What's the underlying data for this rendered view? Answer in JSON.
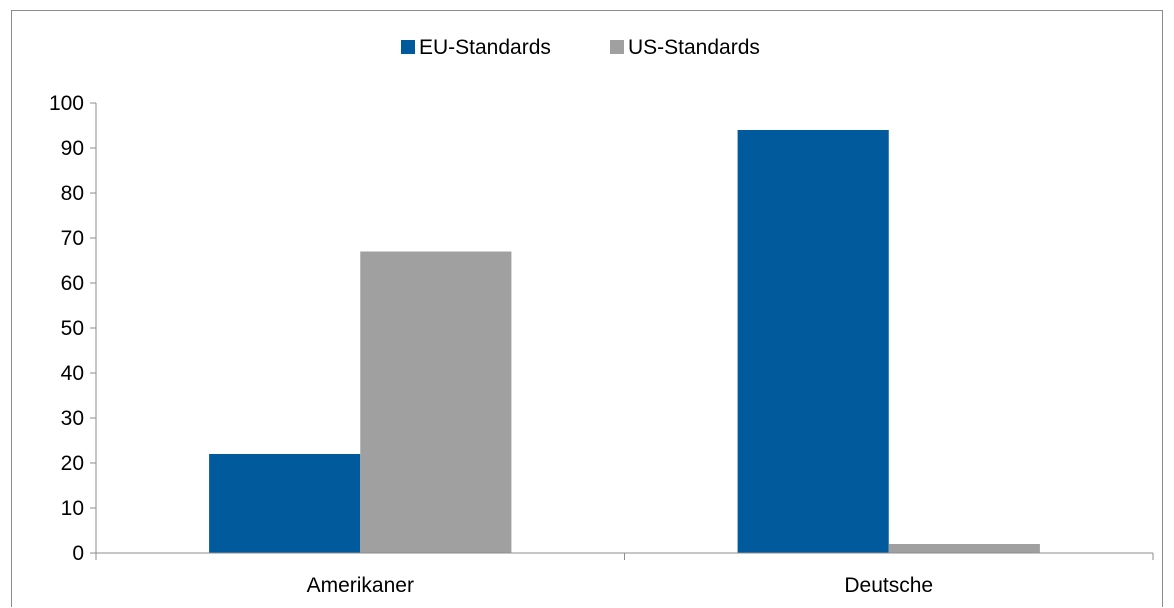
{
  "caption_fragment": "g",
  "chart_data": {
    "type": "bar",
    "title": "",
    "xlabel": "",
    "ylabel": "",
    "categories": [
      "Amerikaner",
      "Deutsche"
    ],
    "series": [
      {
        "name": "EU-Standards",
        "values": [
          22,
          94
        ],
        "color": "#005a9c"
      },
      {
        "name": "US-Standards",
        "values": [
          67,
          2
        ],
        "color": "#a0a0a0"
      }
    ],
    "ylim": [
      0,
      100
    ],
    "yticks": [
      0,
      10,
      20,
      30,
      40,
      50,
      60,
      70,
      80,
      90,
      100
    ],
    "grid": false,
    "legend": "top-center"
  }
}
